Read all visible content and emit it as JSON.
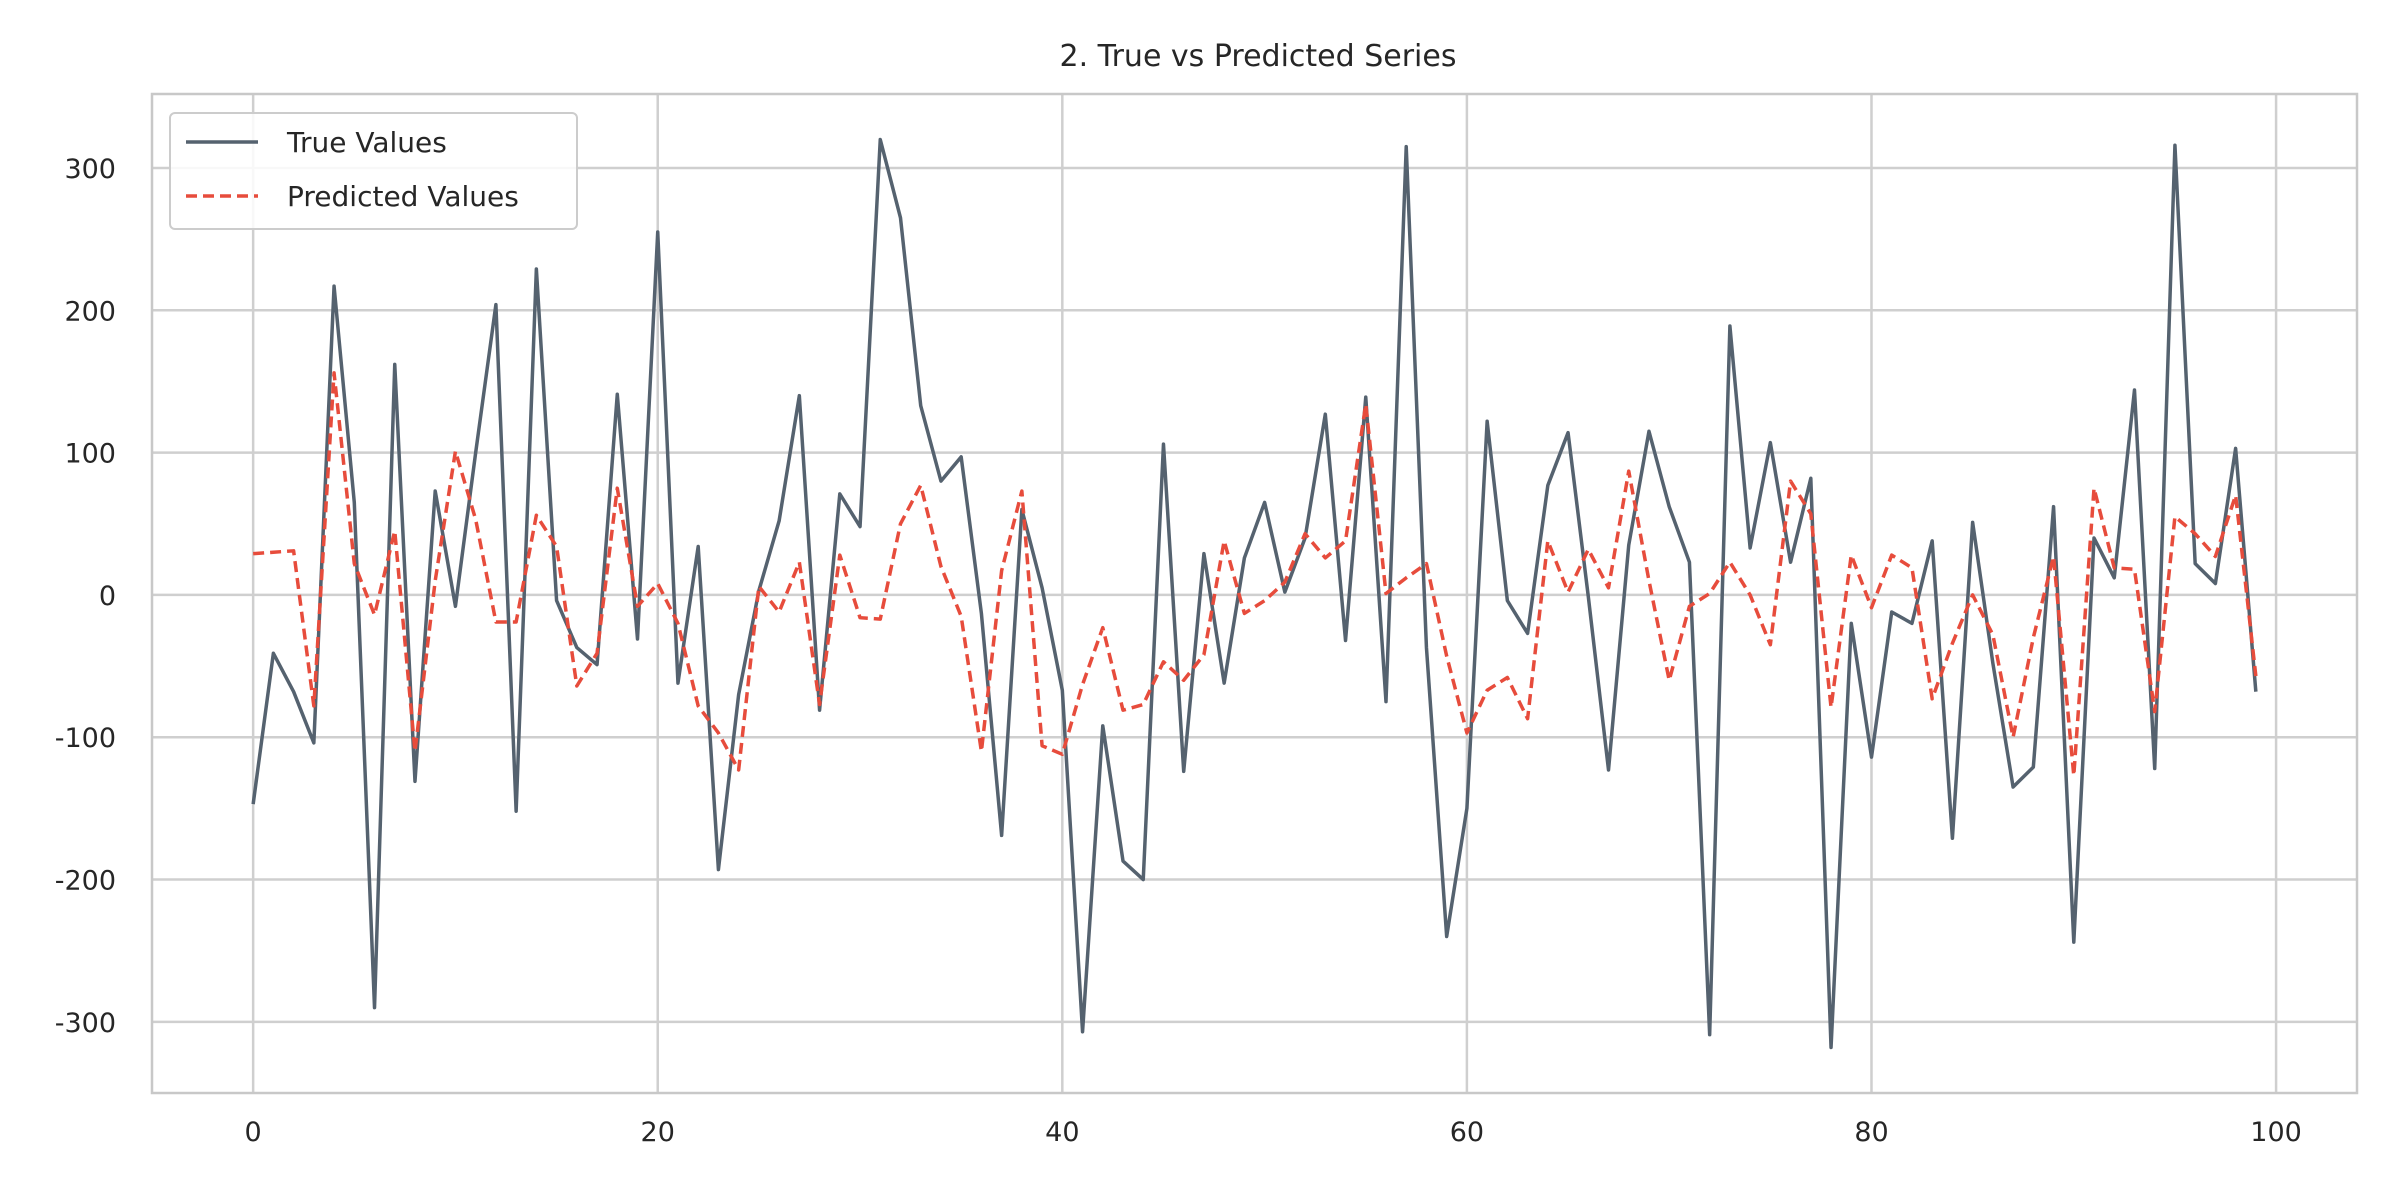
{
  "chart_data": {
    "type": "line",
    "title": "2. True vs Predicted Series",
    "xlabel": "",
    "ylabel": "",
    "xlim": [
      -5,
      104
    ],
    "ylim": [
      -350,
      352
    ],
    "xticks": [
      0,
      20,
      40,
      60,
      80,
      100
    ],
    "yticks": [
      -300,
      -200,
      -100,
      0,
      100,
      200,
      300
    ],
    "grid": true,
    "legend_position": "top-left",
    "x": [
      0,
      1,
      2,
      3,
      4,
      5,
      6,
      7,
      8,
      9,
      10,
      11,
      12,
      13,
      14,
      15,
      16,
      17,
      18,
      19,
      20,
      21,
      22,
      23,
      24,
      25,
      26,
      27,
      28,
      29,
      30,
      31,
      32,
      33,
      34,
      35,
      36,
      37,
      38,
      39,
      40,
      41,
      42,
      43,
      44,
      45,
      46,
      47,
      48,
      49,
      50,
      51,
      52,
      53,
      54,
      55,
      56,
      57,
      58,
      59,
      60,
      61,
      62,
      63,
      64,
      65,
      66,
      67,
      68,
      69,
      70,
      71,
      72,
      73,
      74,
      75,
      76,
      77,
      78,
      79,
      80,
      81,
      82,
      83,
      84,
      85,
      86,
      87,
      88,
      89,
      90,
      91,
      92,
      93,
      94,
      95,
      96,
      97,
      98,
      99
    ],
    "series": [
      {
        "name": "True Values",
        "color": "#55626f",
        "style": "solid",
        "values": [
          -147,
          -41,
          -68,
          -104,
          217,
          65,
          -290,
          162,
          -131,
          73,
          -8,
          100,
          204,
          -152,
          229,
          -4,
          -37,
          -49,
          141,
          -31,
          255,
          -62,
          34,
          -193,
          -70,
          3,
          52,
          140,
          -81,
          71,
          48,
          320,
          265,
          133,
          80,
          97,
          -13,
          -169,
          60,
          5,
          -67,
          -307,
          -92,
          -187,
          -200,
          106,
          -124,
          29,
          -62,
          26,
          65,
          2,
          40,
          127,
          -32,
          139,
          -75,
          315,
          -37,
          -240,
          -150,
          122,
          -4,
          -27,
          77,
          114,
          -1,
          -123,
          35,
          115,
          62,
          23,
          -309,
          189,
          33,
          107,
          23,
          82,
          -318,
          -20,
          -114,
          -12,
          -20,
          38,
          -171,
          51,
          -48,
          -135,
          -121,
          62,
          -244,
          40,
          12,
          144,
          -122,
          316,
          22,
          8,
          103,
          -68
        ]
      },
      {
        "name": "Predicted Values",
        "color": "#e74c3c",
        "style": "dashed",
        "values": [
          29,
          30,
          31,
          -78,
          156,
          22,
          -14,
          45,
          -110,
          10,
          101,
          53,
          -19,
          -19,
          56,
          34,
          -64,
          -41,
          75,
          -8,
          8,
          -20,
          -78,
          -97,
          -123,
          6,
          -12,
          23,
          -77,
          28,
          -16,
          -17,
          50,
          77,
          20,
          -15,
          -110,
          17,
          73,
          -106,
          -112,
          -63,
          -23,
          -81,
          -77,
          -47,
          -60,
          -42,
          38,
          -13,
          -4,
          9,
          43,
          26,
          38,
          134,
          1,
          12,
          22,
          -43,
          -97,
          -67,
          -58,
          -87,
          38,
          2,
          32,
          5,
          87,
          10,
          -60,
          -8,
          1,
          23,
          0,
          -35,
          80,
          57,
          -79,
          28,
          -9,
          28,
          19,
          -73,
          -34,
          0,
          -28,
          -100,
          -30,
          27,
          -127,
          75,
          19,
          18,
          -82,
          55,
          43,
          27,
          70,
          -57
        ]
      }
    ]
  }
}
